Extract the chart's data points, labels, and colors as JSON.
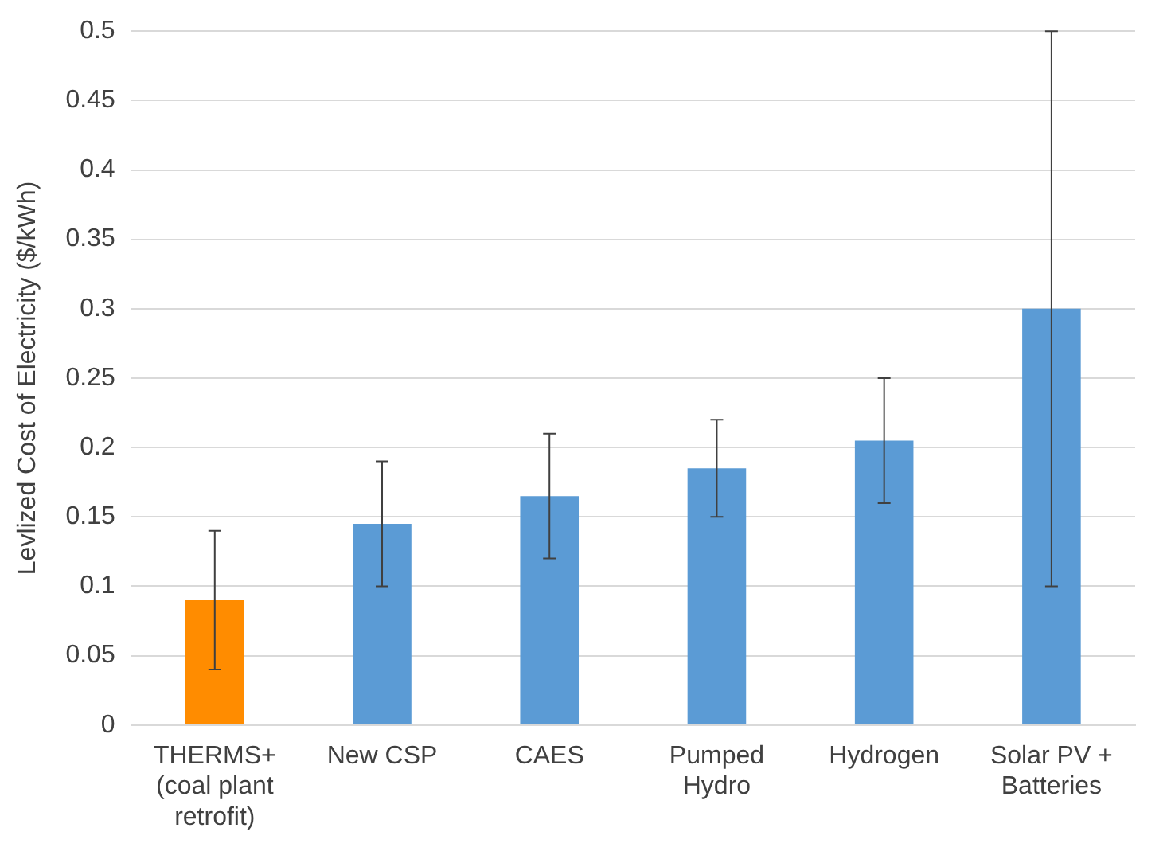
{
  "chart_data": {
    "type": "bar",
    "ylabel": "Levlized Cost of Electricity ($/kWh)",
    "categories": [
      "THERMS+ (coal plant retrofit)",
      "New CSP",
      "CAES",
      "Pumped Hydro",
      "Hydrogen",
      "Solar PV + Batteries"
    ],
    "values": [
      0.09,
      0.145,
      0.165,
      0.185,
      0.205,
      0.3
    ],
    "colors": [
      "#ff8c00",
      "#5b9bd5",
      "#5b9bd5",
      "#5b9bd5",
      "#5b9bd5",
      "#5b9bd5"
    ],
    "errors": [
      [
        0.04,
        0.14
      ],
      [
        0.1,
        0.19
      ],
      [
        0.12,
        0.21
      ],
      [
        0.15,
        0.22
      ],
      [
        0.16,
        0.25
      ],
      [
        0.1,
        0.5
      ]
    ],
    "ylim": [
      0,
      0.5
    ],
    "yticks": [
      0,
      0.05,
      0.1,
      0.15,
      0.2,
      0.25,
      0.3,
      0.35,
      0.4,
      0.45,
      0.5
    ],
    "grid": "y",
    "legend": false
  }
}
